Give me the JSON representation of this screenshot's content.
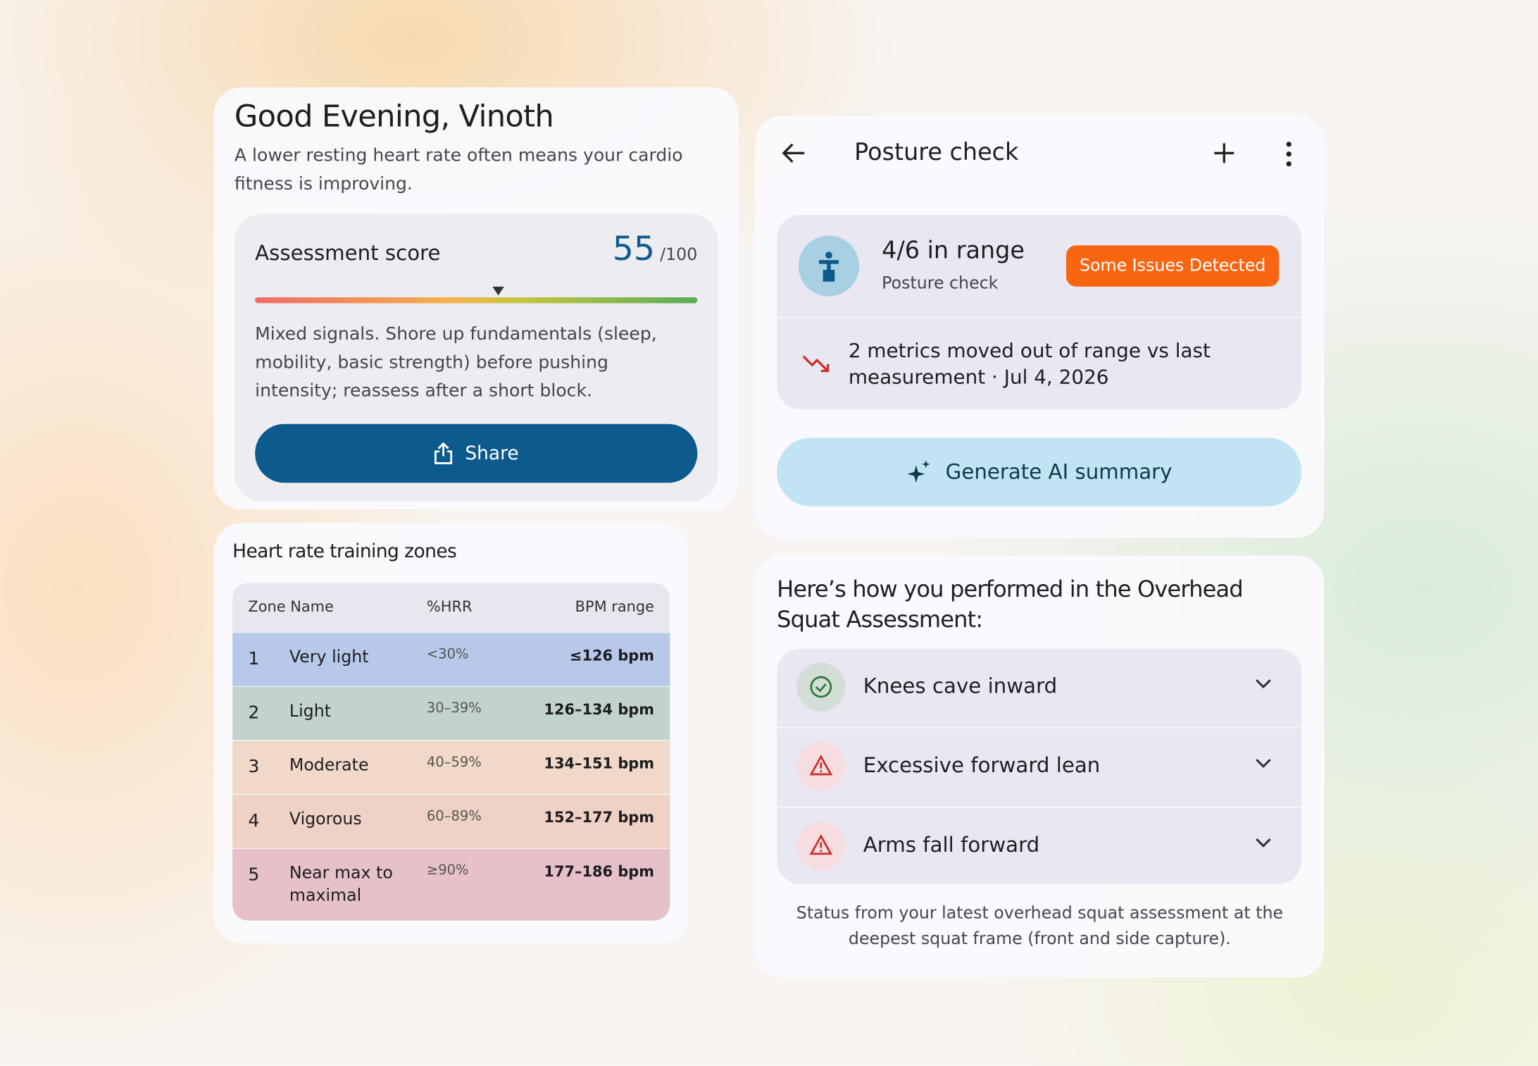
{
  "greeting": {
    "title": "Good Evening, Vinoth",
    "subtitle": "A lower resting heart rate often means your cardio fitness is improving."
  },
  "assessment": {
    "label": "Assessment score",
    "score": 55,
    "score_max": {
      "value": 100,
      "label": "/100"
    },
    "text": "Mixed signals. Shore up fundamentals (sleep, mobility, basic strength) before pushing intensity; reassess after a short block.",
    "button": "Share"
  },
  "zones": {
    "title": "Heart rate training zones",
    "columns": [
      "Zone Name",
      "%HRR",
      "BPM range"
    ],
    "rows": [
      {
        "zone": "1",
        "name": "Very light",
        "hrr": "<30%",
        "bpm": "≤126 bpm",
        "color": "#b8c8e8"
      },
      {
        "zone": "2",
        "name": "Light",
        "hrr": "30–39%",
        "bpm": "126–134 bpm",
        "color": "#c2d3cf"
      },
      {
        "zone": "3",
        "name": "Moderate",
        "hrr": "40–59%",
        "bpm": "134–151 bpm",
        "color": "#f0d9c8"
      },
      {
        "zone": "4",
        "name": "Vigorous",
        "hrr": "60–89%",
        "bpm": "152–177 bpm",
        "color": "#efd1c5"
      },
      {
        "zone": "5",
        "name": "Near max to maximal",
        "hrr": "≥90%",
        "bpm": "177–186 bpm",
        "color": "#e6c1c8"
      }
    ]
  },
  "posture": {
    "title": "Posture check",
    "range": "4/6 in range",
    "range_sub": "Posture check",
    "badge": "Some Issues Detected",
    "note": "2 metrics moved out of range vs last measurement · Jul 4, 2026",
    "button": "Generate AI summary"
  },
  "squat": {
    "title": "Here’s how you performed in the Overhead Squat Assessment:",
    "items": [
      "Knees cave inward",
      "Excessive forward lean",
      "Arms fall forward"
    ],
    "footer": "Status from your latest overhead squat assessment at the deepest squat frame (front and side capture)."
  }
}
